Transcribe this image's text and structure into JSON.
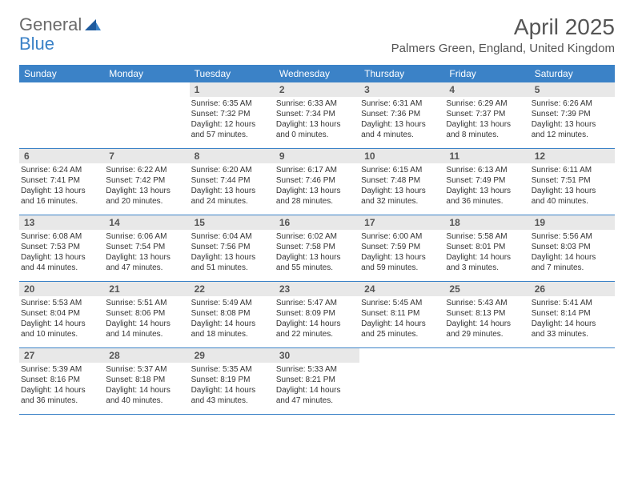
{
  "logo": {
    "general": "General",
    "blue": "Blue"
  },
  "title": "April 2025",
  "location": "Palmers Green, England, United Kingdom",
  "colors": {
    "header_bg": "#3b82c7",
    "daynum_bg": "#e8e8e8",
    "text": "#333333",
    "title_text": "#555555"
  },
  "day_headers": [
    "Sunday",
    "Monday",
    "Tuesday",
    "Wednesday",
    "Thursday",
    "Friday",
    "Saturday"
  ],
  "weeks": [
    [
      {
        "day": "",
        "sunrise": "",
        "sunset": "",
        "daylight1": "",
        "daylight2": ""
      },
      {
        "day": "",
        "sunrise": "",
        "sunset": "",
        "daylight1": "",
        "daylight2": ""
      },
      {
        "day": "1",
        "sunrise": "Sunrise: 6:35 AM",
        "sunset": "Sunset: 7:32 PM",
        "daylight1": "Daylight: 12 hours",
        "daylight2": "and 57 minutes."
      },
      {
        "day": "2",
        "sunrise": "Sunrise: 6:33 AM",
        "sunset": "Sunset: 7:34 PM",
        "daylight1": "Daylight: 13 hours",
        "daylight2": "and 0 minutes."
      },
      {
        "day": "3",
        "sunrise": "Sunrise: 6:31 AM",
        "sunset": "Sunset: 7:36 PM",
        "daylight1": "Daylight: 13 hours",
        "daylight2": "and 4 minutes."
      },
      {
        "day": "4",
        "sunrise": "Sunrise: 6:29 AM",
        "sunset": "Sunset: 7:37 PM",
        "daylight1": "Daylight: 13 hours",
        "daylight2": "and 8 minutes."
      },
      {
        "day": "5",
        "sunrise": "Sunrise: 6:26 AM",
        "sunset": "Sunset: 7:39 PM",
        "daylight1": "Daylight: 13 hours",
        "daylight2": "and 12 minutes."
      }
    ],
    [
      {
        "day": "6",
        "sunrise": "Sunrise: 6:24 AM",
        "sunset": "Sunset: 7:41 PM",
        "daylight1": "Daylight: 13 hours",
        "daylight2": "and 16 minutes."
      },
      {
        "day": "7",
        "sunrise": "Sunrise: 6:22 AM",
        "sunset": "Sunset: 7:42 PM",
        "daylight1": "Daylight: 13 hours",
        "daylight2": "and 20 minutes."
      },
      {
        "day": "8",
        "sunrise": "Sunrise: 6:20 AM",
        "sunset": "Sunset: 7:44 PM",
        "daylight1": "Daylight: 13 hours",
        "daylight2": "and 24 minutes."
      },
      {
        "day": "9",
        "sunrise": "Sunrise: 6:17 AM",
        "sunset": "Sunset: 7:46 PM",
        "daylight1": "Daylight: 13 hours",
        "daylight2": "and 28 minutes."
      },
      {
        "day": "10",
        "sunrise": "Sunrise: 6:15 AM",
        "sunset": "Sunset: 7:48 PM",
        "daylight1": "Daylight: 13 hours",
        "daylight2": "and 32 minutes."
      },
      {
        "day": "11",
        "sunrise": "Sunrise: 6:13 AM",
        "sunset": "Sunset: 7:49 PM",
        "daylight1": "Daylight: 13 hours",
        "daylight2": "and 36 minutes."
      },
      {
        "day": "12",
        "sunrise": "Sunrise: 6:11 AM",
        "sunset": "Sunset: 7:51 PM",
        "daylight1": "Daylight: 13 hours",
        "daylight2": "and 40 minutes."
      }
    ],
    [
      {
        "day": "13",
        "sunrise": "Sunrise: 6:08 AM",
        "sunset": "Sunset: 7:53 PM",
        "daylight1": "Daylight: 13 hours",
        "daylight2": "and 44 minutes."
      },
      {
        "day": "14",
        "sunrise": "Sunrise: 6:06 AM",
        "sunset": "Sunset: 7:54 PM",
        "daylight1": "Daylight: 13 hours",
        "daylight2": "and 47 minutes."
      },
      {
        "day": "15",
        "sunrise": "Sunrise: 6:04 AM",
        "sunset": "Sunset: 7:56 PM",
        "daylight1": "Daylight: 13 hours",
        "daylight2": "and 51 minutes."
      },
      {
        "day": "16",
        "sunrise": "Sunrise: 6:02 AM",
        "sunset": "Sunset: 7:58 PM",
        "daylight1": "Daylight: 13 hours",
        "daylight2": "and 55 minutes."
      },
      {
        "day": "17",
        "sunrise": "Sunrise: 6:00 AM",
        "sunset": "Sunset: 7:59 PM",
        "daylight1": "Daylight: 13 hours",
        "daylight2": "and 59 minutes."
      },
      {
        "day": "18",
        "sunrise": "Sunrise: 5:58 AM",
        "sunset": "Sunset: 8:01 PM",
        "daylight1": "Daylight: 14 hours",
        "daylight2": "and 3 minutes."
      },
      {
        "day": "19",
        "sunrise": "Sunrise: 5:56 AM",
        "sunset": "Sunset: 8:03 PM",
        "daylight1": "Daylight: 14 hours",
        "daylight2": "and 7 minutes."
      }
    ],
    [
      {
        "day": "20",
        "sunrise": "Sunrise: 5:53 AM",
        "sunset": "Sunset: 8:04 PM",
        "daylight1": "Daylight: 14 hours",
        "daylight2": "and 10 minutes."
      },
      {
        "day": "21",
        "sunrise": "Sunrise: 5:51 AM",
        "sunset": "Sunset: 8:06 PM",
        "daylight1": "Daylight: 14 hours",
        "daylight2": "and 14 minutes."
      },
      {
        "day": "22",
        "sunrise": "Sunrise: 5:49 AM",
        "sunset": "Sunset: 8:08 PM",
        "daylight1": "Daylight: 14 hours",
        "daylight2": "and 18 minutes."
      },
      {
        "day": "23",
        "sunrise": "Sunrise: 5:47 AM",
        "sunset": "Sunset: 8:09 PM",
        "daylight1": "Daylight: 14 hours",
        "daylight2": "and 22 minutes."
      },
      {
        "day": "24",
        "sunrise": "Sunrise: 5:45 AM",
        "sunset": "Sunset: 8:11 PM",
        "daylight1": "Daylight: 14 hours",
        "daylight2": "and 25 minutes."
      },
      {
        "day": "25",
        "sunrise": "Sunrise: 5:43 AM",
        "sunset": "Sunset: 8:13 PM",
        "daylight1": "Daylight: 14 hours",
        "daylight2": "and 29 minutes."
      },
      {
        "day": "26",
        "sunrise": "Sunrise: 5:41 AM",
        "sunset": "Sunset: 8:14 PM",
        "daylight1": "Daylight: 14 hours",
        "daylight2": "and 33 minutes."
      }
    ],
    [
      {
        "day": "27",
        "sunrise": "Sunrise: 5:39 AM",
        "sunset": "Sunset: 8:16 PM",
        "daylight1": "Daylight: 14 hours",
        "daylight2": "and 36 minutes."
      },
      {
        "day": "28",
        "sunrise": "Sunrise: 5:37 AM",
        "sunset": "Sunset: 8:18 PM",
        "daylight1": "Daylight: 14 hours",
        "daylight2": "and 40 minutes."
      },
      {
        "day": "29",
        "sunrise": "Sunrise: 5:35 AM",
        "sunset": "Sunset: 8:19 PM",
        "daylight1": "Daylight: 14 hours",
        "daylight2": "and 43 minutes."
      },
      {
        "day": "30",
        "sunrise": "Sunrise: 5:33 AM",
        "sunset": "Sunset: 8:21 PM",
        "daylight1": "Daylight: 14 hours",
        "daylight2": "and 47 minutes."
      },
      {
        "day": "",
        "sunrise": "",
        "sunset": "",
        "daylight1": "",
        "daylight2": ""
      },
      {
        "day": "",
        "sunrise": "",
        "sunset": "",
        "daylight1": "",
        "daylight2": ""
      },
      {
        "day": "",
        "sunrise": "",
        "sunset": "",
        "daylight1": "",
        "daylight2": ""
      }
    ]
  ]
}
